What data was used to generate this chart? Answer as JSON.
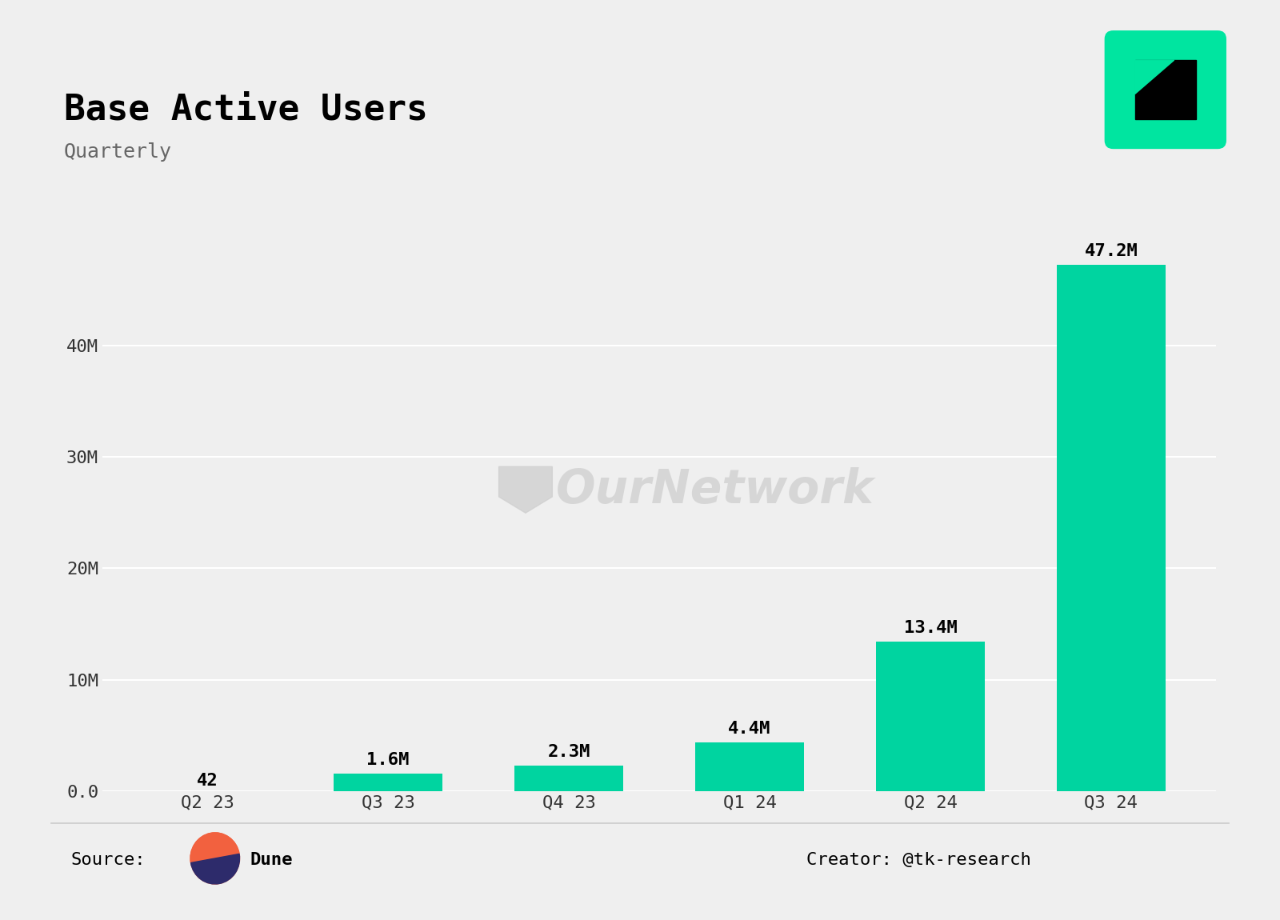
{
  "title": "Base Active Users",
  "subtitle": "Quarterly",
  "categories": [
    "Q2 23",
    "Q3 23",
    "Q4 23",
    "Q1 24",
    "Q2 24",
    "Q3 24"
  ],
  "values": [
    42,
    1600000,
    2300000,
    4400000,
    13400000,
    47200000
  ],
  "bar_labels": [
    "42",
    "1.6M",
    "2.3M",
    "4.4M",
    "13.4M",
    "47.2M"
  ],
  "bar_color": "#00D4A0",
  "background_color": "#EFEFEF",
  "title_fontsize": 32,
  "subtitle_fontsize": 18,
  "ytick_labels": [
    "0.0",
    "10M",
    "20M",
    "30M",
    "40M"
  ],
  "ytick_values": [
    0,
    10000000,
    20000000,
    30000000,
    40000000
  ],
  "ylim": [
    0,
    52000000
  ],
  "source_text": "Source:",
  "source_name": "Dune",
  "creator_text": "Creator: @tk-research",
  "watermark_text": "OurNetwork",
  "logo_bg_color": "#00E5A0",
  "logo_fg_color": "#000000",
  "grid_color": "#FFFFFF",
  "tick_label_color": "#333333"
}
